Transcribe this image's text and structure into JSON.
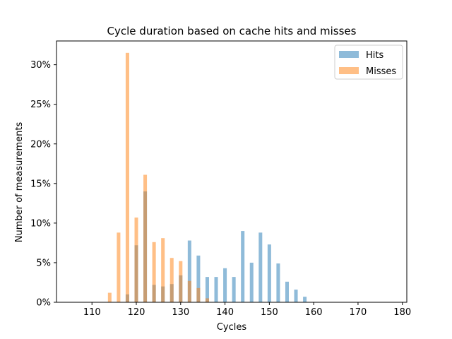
{
  "chart_data": {
    "type": "bar",
    "title": "Cycle duration based on cache hits and misses",
    "xlabel": "Cycles",
    "ylabel": "Number of measurements",
    "xlim": [
      102,
      181
    ],
    "ylim": [
      0,
      0.33
    ],
    "xticks": [
      110,
      120,
      130,
      140,
      150,
      160,
      170,
      180
    ],
    "yticks": [
      0,
      0.05,
      0.1,
      0.15,
      0.2,
      0.25,
      0.3
    ],
    "ytick_labels": [
      "0%",
      "5%",
      "10%",
      "15%",
      "20%",
      "25%",
      "30%"
    ],
    "bar_width": 0.8,
    "grid": false,
    "legend_position": "top-right",
    "series": [
      {
        "name": "Hits",
        "color": "#1f77b4",
        "alpha": 0.5,
        "points": [
          {
            "x": 118,
            "y": 0.01
          },
          {
            "x": 120,
            "y": 0.072
          },
          {
            "x": 122,
            "y": 0.14
          },
          {
            "x": 124,
            "y": 0.022
          },
          {
            "x": 126,
            "y": 0.02
          },
          {
            "x": 128,
            "y": 0.023
          },
          {
            "x": 130,
            "y": 0.034
          },
          {
            "x": 132,
            "y": 0.078
          },
          {
            "x": 134,
            "y": 0.059
          },
          {
            "x": 136,
            "y": 0.032
          },
          {
            "x": 138,
            "y": 0.032
          },
          {
            "x": 140,
            "y": 0.043
          },
          {
            "x": 142,
            "y": 0.032
          },
          {
            "x": 144,
            "y": 0.09
          },
          {
            "x": 146,
            "y": 0.05
          },
          {
            "x": 148,
            "y": 0.088
          },
          {
            "x": 150,
            "y": 0.073
          },
          {
            "x": 152,
            "y": 0.049
          },
          {
            "x": 154,
            "y": 0.026
          },
          {
            "x": 156,
            "y": 0.016
          },
          {
            "x": 158,
            "y": 0.007
          }
        ]
      },
      {
        "name": "Misses",
        "color": "#ff7f0e",
        "alpha": 0.5,
        "points": [
          {
            "x": 114,
            "y": 0.012
          },
          {
            "x": 116,
            "y": 0.088
          },
          {
            "x": 118,
            "y": 0.315
          },
          {
            "x": 120,
            "y": 0.107
          },
          {
            "x": 122,
            "y": 0.161
          },
          {
            "x": 124,
            "y": 0.076
          },
          {
            "x": 126,
            "y": 0.081
          },
          {
            "x": 128,
            "y": 0.056
          },
          {
            "x": 130,
            "y": 0.052
          },
          {
            "x": 132,
            "y": 0.027
          },
          {
            "x": 134,
            "y": 0.018
          },
          {
            "x": 136,
            "y": 0.005
          }
        ]
      }
    ]
  }
}
